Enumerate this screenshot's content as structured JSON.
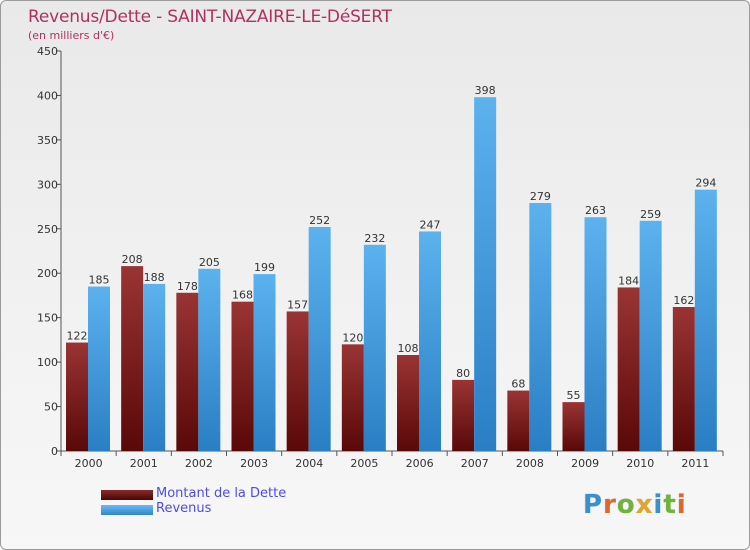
{
  "header": {
    "title": "Revenus/Dette - SAINT-NAZAIRE-LE-DéSERT",
    "subtitle": "(en milliers d'€)"
  },
  "legend": {
    "items": [
      {
        "label": "Montant de la Dette",
        "color": "#6e1a1a"
      },
      {
        "label": "Revenus",
        "color": "#4ea6e6"
      }
    ]
  },
  "logo": {
    "text": "Proxiti"
  },
  "chart_data": {
    "type": "bar",
    "title": "Revenus/Dette - SAINT-NAZAIRE-LE-DéSERT",
    "ylabel": "(en milliers d'€)",
    "xlabel": "",
    "ylim": [
      0,
      450
    ],
    "yticks": [
      0,
      50,
      100,
      150,
      200,
      250,
      300,
      350,
      400,
      450
    ],
    "grid": false,
    "legend_position": "bottom-left",
    "categories": [
      "2000",
      "2001",
      "2002",
      "2003",
      "2004",
      "2005",
      "2006",
      "2007",
      "2008",
      "2009",
      "2010",
      "2011"
    ],
    "series": [
      {
        "name": "Montant de la Dette",
        "color": "#6e1a1a",
        "values": [
          122,
          208,
          178,
          168,
          157,
          120,
          108,
          80,
          68,
          55,
          184,
          162
        ]
      },
      {
        "name": "Revenus",
        "color": "#4ea6e6",
        "values": [
          185,
          188,
          205,
          199,
          252,
          232,
          247,
          398,
          279,
          263,
          259,
          294
        ]
      }
    ]
  }
}
